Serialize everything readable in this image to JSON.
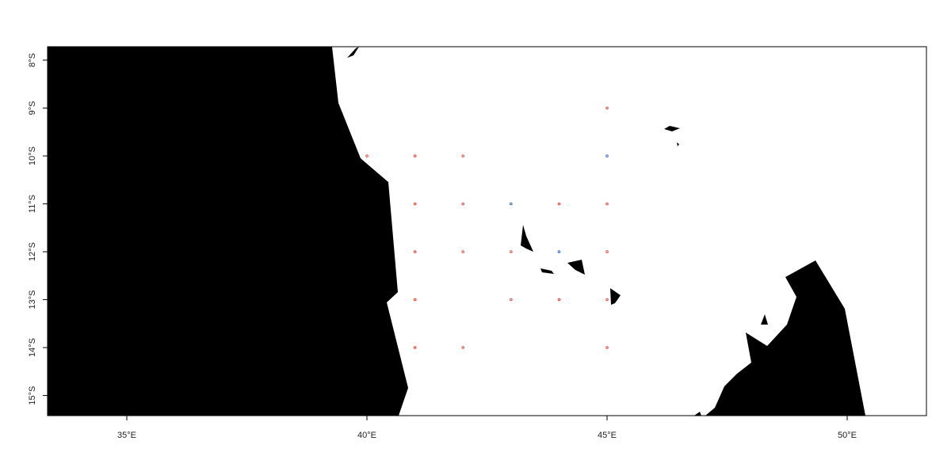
{
  "chart_data": {
    "type": "scatter",
    "title": "",
    "xlabel": "",
    "ylabel": "",
    "xlim": [
      33.35,
      51.65
    ],
    "ylim": [
      -15.42,
      -7.72
    ],
    "x_ticks": [
      {
        "value": 35,
        "label": "35°E"
      },
      {
        "value": 40,
        "label": "40°E"
      },
      {
        "value": 45,
        "label": "45°E"
      },
      {
        "value": 50,
        "label": "50°E"
      }
    ],
    "y_ticks": [
      {
        "value": -8,
        "label": "8°S"
      },
      {
        "value": -9,
        "label": "9°S"
      },
      {
        "value": -10,
        "label": "10°S"
      },
      {
        "value": -11,
        "label": "11°S"
      },
      {
        "value": -12,
        "label": "12°S"
      },
      {
        "value": -13,
        "label": "13°S"
      },
      {
        "value": -14,
        "label": "14°S"
      },
      {
        "value": -15,
        "label": "15°S"
      }
    ],
    "grid": false,
    "land_color": "#000000",
    "sea_color": "#ffffff",
    "series": [
      {
        "color": "#e8392b",
        "points": [
          [
            45,
            -9
          ],
          [
            40,
            -10
          ],
          [
            41,
            -10
          ],
          [
            42,
            -10
          ],
          [
            41,
            -11
          ],
          [
            42,
            -11
          ],
          [
            44,
            -11
          ],
          [
            45,
            -11
          ],
          [
            41,
            -12
          ],
          [
            42,
            -12
          ],
          [
            43,
            -12
          ],
          [
            45,
            -12
          ],
          [
            41,
            -13
          ],
          [
            43,
            -13
          ],
          [
            44,
            -13
          ],
          [
            45,
            -13
          ],
          [
            41,
            -14
          ],
          [
            42,
            -14
          ],
          [
            45,
            -14
          ]
        ]
      },
      {
        "color": "#3050d0",
        "points": [
          [
            45,
            -10
          ],
          [
            43,
            -11
          ],
          [
            44,
            -12
          ]
        ]
      }
    ]
  }
}
